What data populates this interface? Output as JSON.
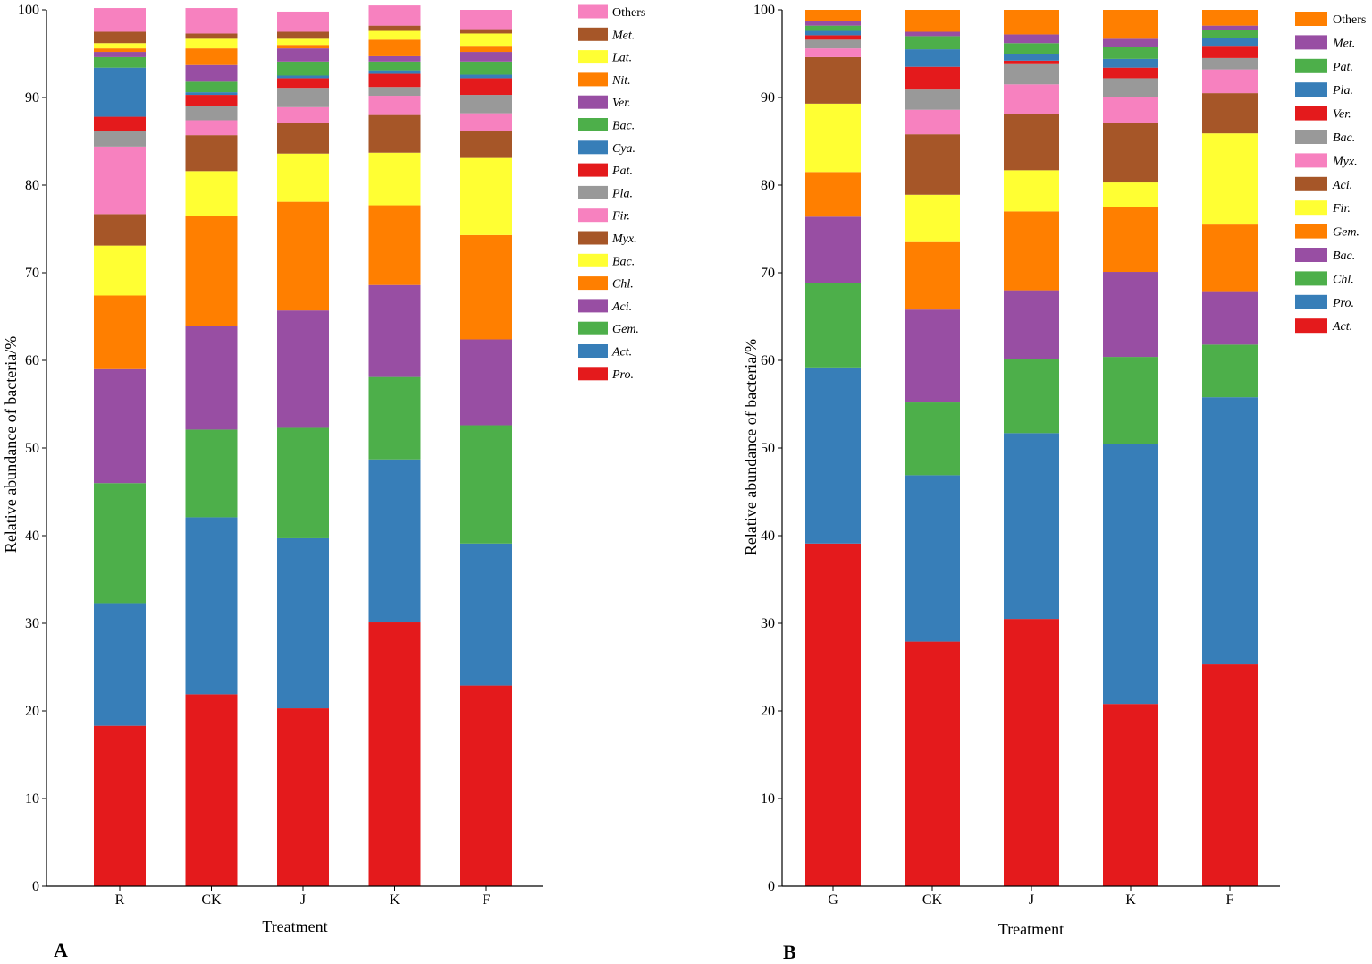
{
  "chart_data": [
    {
      "type": "bar",
      "stacked": true,
      "panel_label": "A",
      "xlabel": "Treatment",
      "ylabel": "Relative abundance of bacteria/%",
      "ylim": [
        0,
        100
      ],
      "yticks": [
        0,
        10,
        20,
        30,
        40,
        50,
        60,
        70,
        80,
        90,
        100
      ],
      "categories": [
        "R",
        "CK",
        "J",
        "K",
        "F"
      ],
      "legend_position": "right",
      "series": [
        {
          "name": "Pro.",
          "color": "#e41a1c",
          "values": [
            18.3,
            21.9,
            20.3,
            30.1,
            22.9
          ]
        },
        {
          "name": "Act.",
          "color": "#377eb8",
          "values": [
            14.0,
            20.2,
            19.4,
            18.6,
            16.2
          ]
        },
        {
          "name": "Gem.",
          "color": "#4daf4a",
          "values": [
            13.7,
            10.0,
            12.6,
            9.4,
            13.5
          ]
        },
        {
          "name": "Aci.",
          "color": "#984ea3",
          "values": [
            13.0,
            11.8,
            13.4,
            10.5,
            9.8
          ]
        },
        {
          "name": "Chl.",
          "color": "#ff7f00",
          "values": [
            8.4,
            12.6,
            12.4,
            9.1,
            11.9
          ]
        },
        {
          "name": "Bac.",
          "color": "#ffff33",
          "values": [
            5.7,
            5.1,
            5.5,
            6.0,
            8.8
          ]
        },
        {
          "name": "Myx.",
          "color": "#a65628",
          "values": [
            3.6,
            4.1,
            3.5,
            4.3,
            3.1
          ]
        },
        {
          "name": "Fir.",
          "color": "#f781bf",
          "values": [
            7.7,
            1.7,
            1.8,
            2.2,
            2.0
          ]
        },
        {
          "name": "Pla.",
          "color": "#999999",
          "values": [
            1.8,
            1.6,
            2.2,
            1.0,
            2.1
          ]
        },
        {
          "name": "Pat.",
          "color": "#e41a1c",
          "values": [
            1.6,
            1.3,
            1.1,
            1.5,
            1.9
          ]
        },
        {
          "name": "Cya.",
          "color": "#377eb8",
          "values": [
            5.6,
            0.3,
            0.3,
            0.4,
            0.4
          ]
        },
        {
          "name": "Bac.",
          "color": "#4daf4a",
          "values": [
            1.2,
            1.2,
            1.6,
            1.0,
            1.5
          ]
        },
        {
          "name": "Ver.",
          "color": "#984ea3",
          "values": [
            0.6,
            1.9,
            1.5,
            0.6,
            1.1
          ]
        },
        {
          "name": "Nit.",
          "color": "#ff7f00",
          "values": [
            0.4,
            1.9,
            0.4,
            1.9,
            0.7
          ]
        },
        {
          "name": "Lat.",
          "color": "#ffff33",
          "values": [
            0.6,
            1.1,
            0.7,
            1.0,
            1.4
          ]
        },
        {
          "name": "Met.",
          "color": "#a65628",
          "values": [
            1.3,
            0.6,
            0.8,
            0.6,
            0.5
          ]
        },
        {
          "name": "Others",
          "color": "#f781bf",
          "values": [
            2.7,
            2.9,
            2.3,
            2.3,
            2.2
          ]
        }
      ]
    },
    {
      "type": "bar",
      "stacked": true,
      "panel_label": "B",
      "xlabel": "Treatment",
      "ylabel": "Relative abundance of bacteria/%",
      "ylim": [
        0,
        100
      ],
      "yticks": [
        0,
        10,
        20,
        30,
        40,
        50,
        60,
        70,
        80,
        90,
        100
      ],
      "categories": [
        "G",
        "CK",
        "J",
        "K",
        "F"
      ],
      "legend_position": "right",
      "series": [
        {
          "name": "Act.",
          "color": "#e41a1c",
          "values": [
            39.1,
            27.9,
            30.5,
            20.8,
            25.3
          ]
        },
        {
          "name": "Pro.",
          "color": "#377eb8",
          "values": [
            20.1,
            19.0,
            21.2,
            29.7,
            30.5
          ]
        },
        {
          "name": "Chl.",
          "color": "#4daf4a",
          "values": [
            9.6,
            8.3,
            8.4,
            9.9,
            6.0
          ]
        },
        {
          "name": "Bac.",
          "color": "#984ea3",
          "values": [
            7.6,
            10.6,
            7.9,
            9.7,
            6.1
          ]
        },
        {
          "name": "Gem.",
          "color": "#ff7f00",
          "values": [
            5.1,
            7.7,
            9.0,
            7.4,
            7.6
          ]
        },
        {
          "name": "Fir.",
          "color": "#ffff33",
          "values": [
            7.8,
            5.4,
            4.7,
            2.8,
            10.4
          ]
        },
        {
          "name": "Aci.",
          "color": "#a65628",
          "values": [
            5.3,
            6.9,
            6.4,
            6.8,
            4.6
          ]
        },
        {
          "name": "Myx.",
          "color": "#f781bf",
          "values": [
            1.0,
            2.8,
            3.4,
            3.0,
            2.7
          ]
        },
        {
          "name": "Bac.",
          "color": "#999999",
          "values": [
            1.0,
            2.3,
            2.3,
            2.1,
            1.3
          ]
        },
        {
          "name": "Ver.",
          "color": "#e41a1c",
          "values": [
            0.5,
            2.6,
            0.4,
            1.2,
            1.4
          ]
        },
        {
          "name": "Pla.",
          "color": "#377eb8",
          "values": [
            0.5,
            2.0,
            0.8,
            1.0,
            0.9
          ]
        },
        {
          "name": "Pat.",
          "color": "#4daf4a",
          "values": [
            0.6,
            1.5,
            1.2,
            1.4,
            0.9
          ]
        },
        {
          "name": "Met.",
          "color": "#984ea3",
          "values": [
            0.5,
            0.5,
            1.0,
            0.9,
            0.5
          ]
        },
        {
          "name": "Others",
          "color": "#ff7f00",
          "values": [
            1.3,
            2.5,
            2.8,
            3.3,
            1.8
          ]
        }
      ]
    }
  ]
}
